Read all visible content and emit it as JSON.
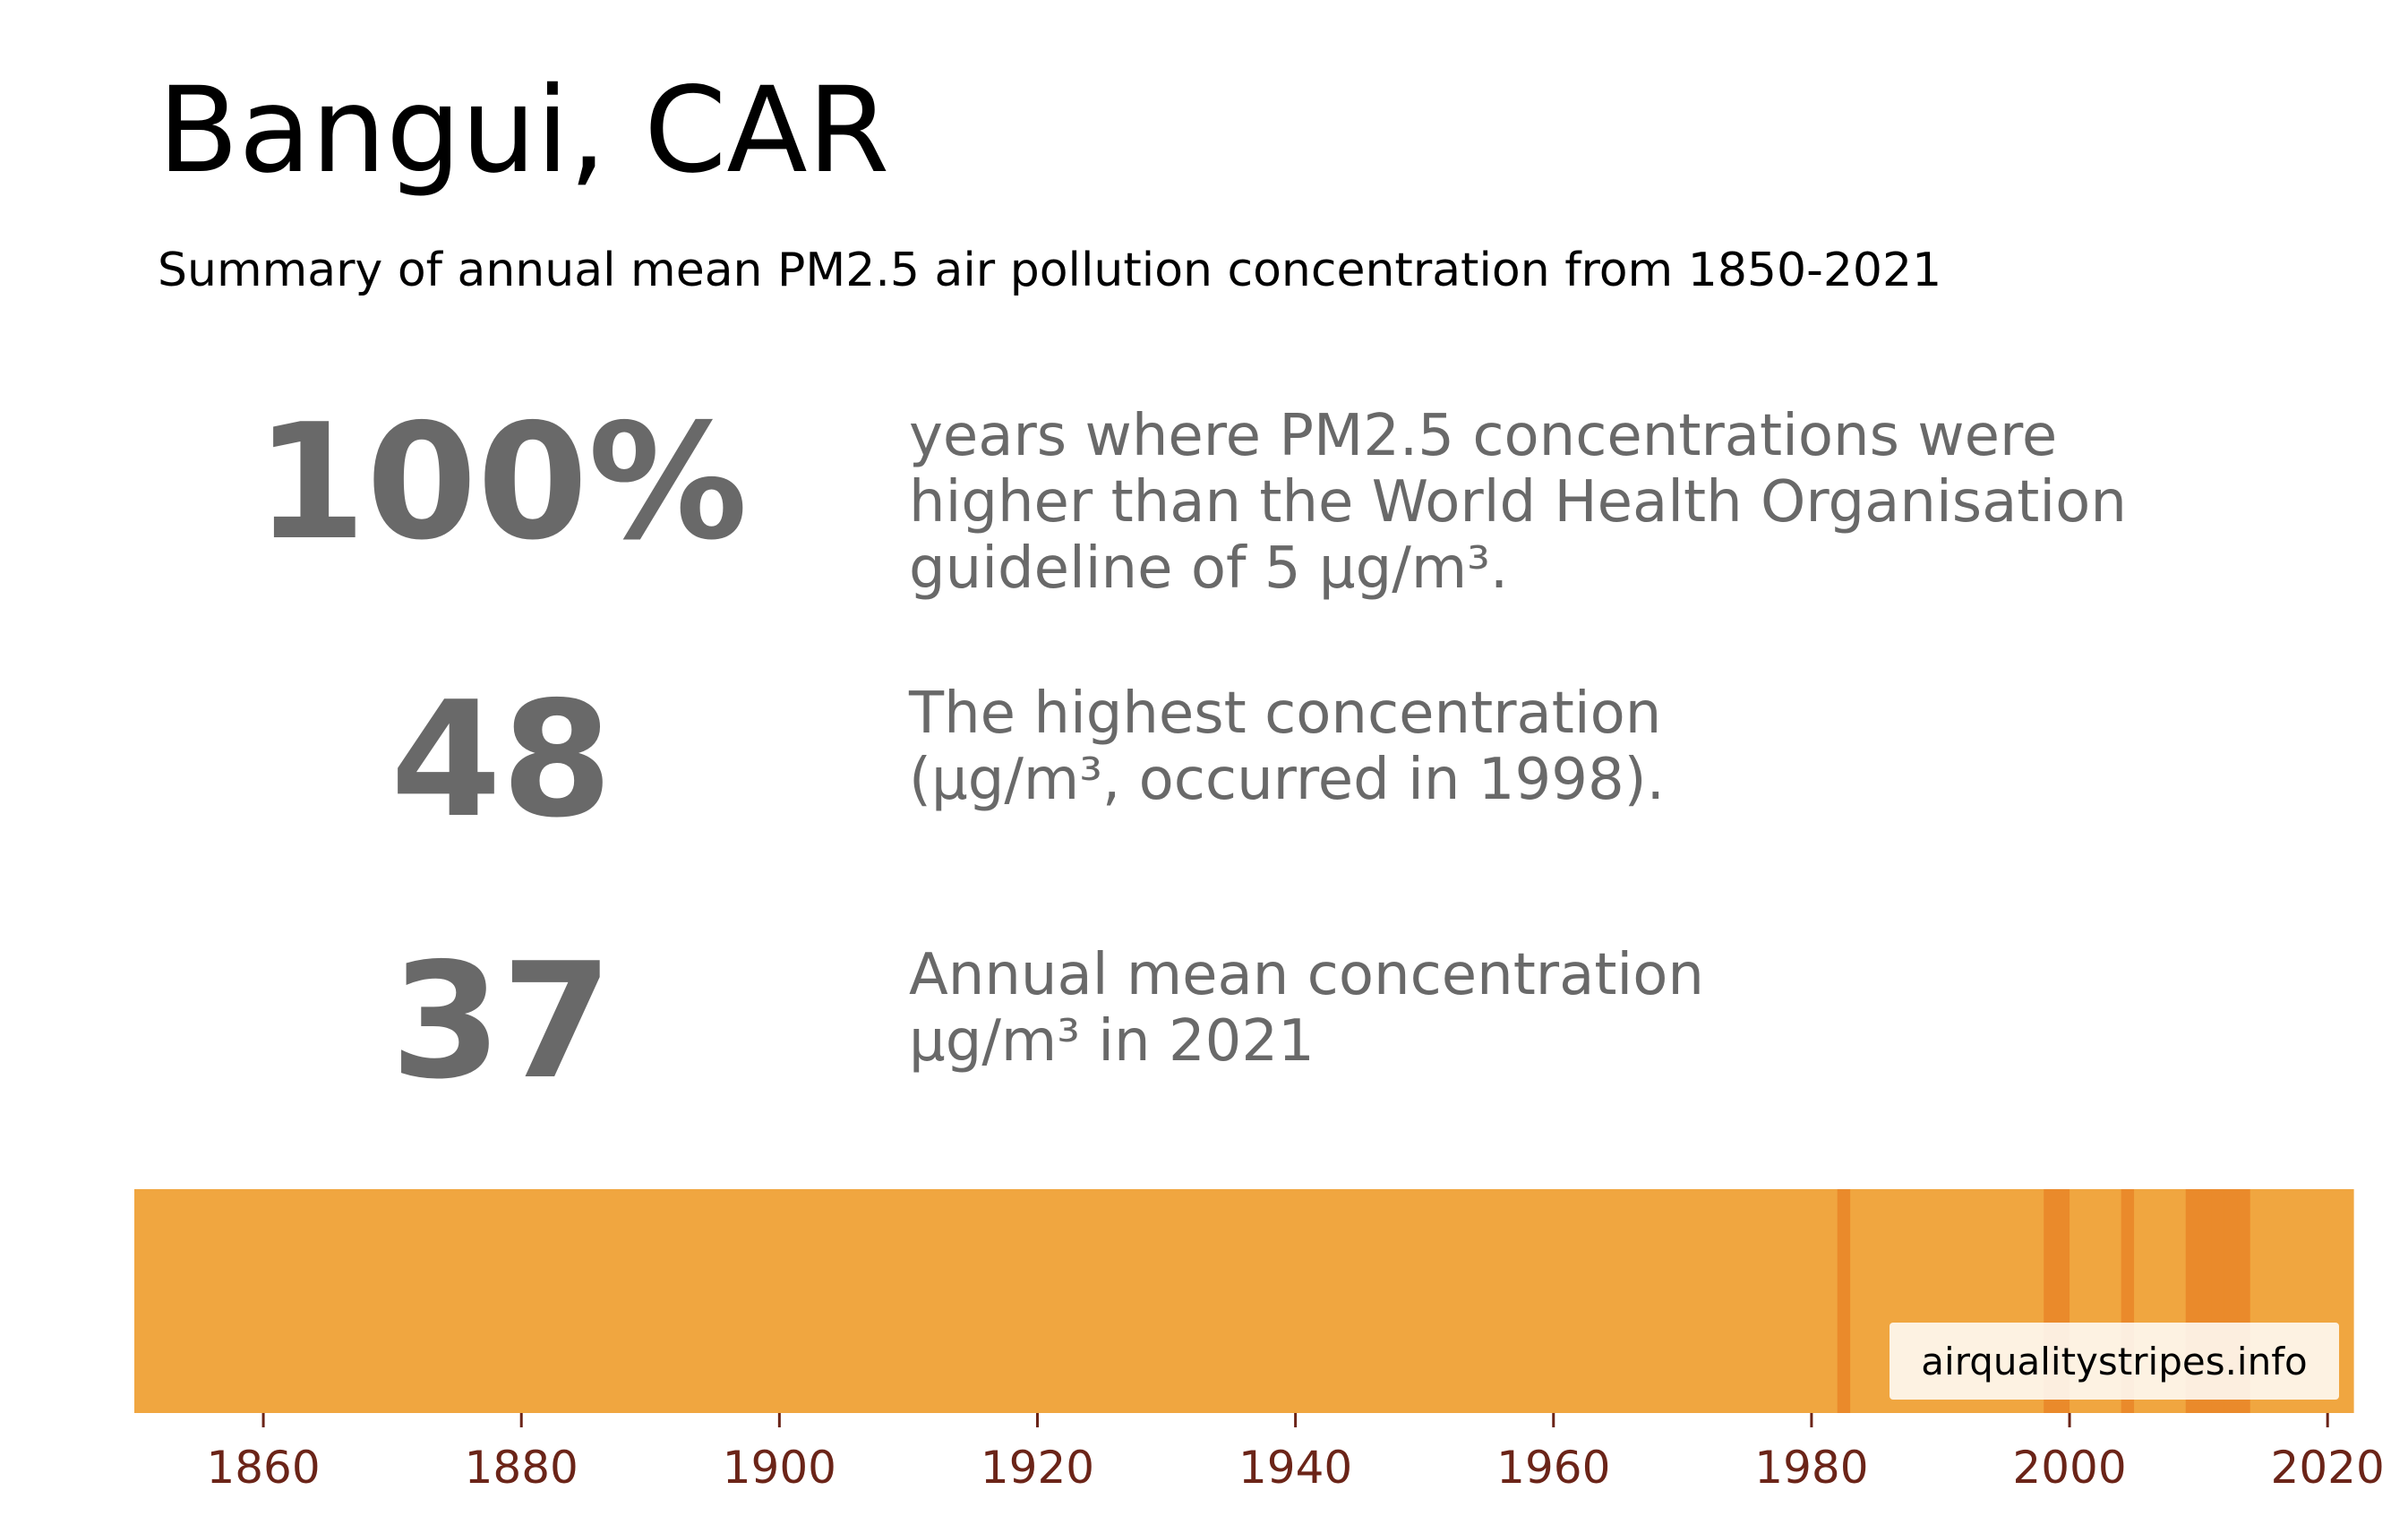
{
  "header": {
    "title": "Bangui, CAR",
    "subtitle": "Summary of annual mean PM2.5 air pollution concentration from 1850-2021"
  },
  "stats": [
    {
      "value": "100%",
      "description": [
        "years where PM2.5 concentrations were",
        "higher than the World Health Organisation",
        "guideline of 5 µg/m³."
      ]
    },
    {
      "value": "48",
      "description": [
        "The highest concentration",
        "(µg/m³, occurred in 1998)."
      ]
    },
    {
      "value": "37",
      "description": [
        "Annual mean concentration",
        "µg/m³ in 2021"
      ]
    }
  ],
  "watermark": "airqualitystripes.info",
  "colors": {
    "stripe_base": "#f0a640",
    "stripe_high": "#ea8a2b",
    "tick_label": "#6b2418",
    "stat_text": "#696969"
  },
  "chart_data": {
    "type": "heatmap",
    "title": "",
    "xlabel": "",
    "ylabel": "",
    "xlim": [
      1850,
      2022
    ],
    "x_ticks": [
      1860,
      1880,
      1900,
      1920,
      1940,
      1960,
      1980,
      2000,
      2020
    ],
    "grid": false,
    "legend": "none",
    "start_year": 1850,
    "end_year": 2021,
    "baseline_value": 37,
    "elevated_years": [
      1982,
      1998,
      1999,
      2004,
      2009,
      2010,
      2011,
      2012,
      2013
    ],
    "elevated_value": 46,
    "peak_year": 1998,
    "peak_value": 48
  }
}
